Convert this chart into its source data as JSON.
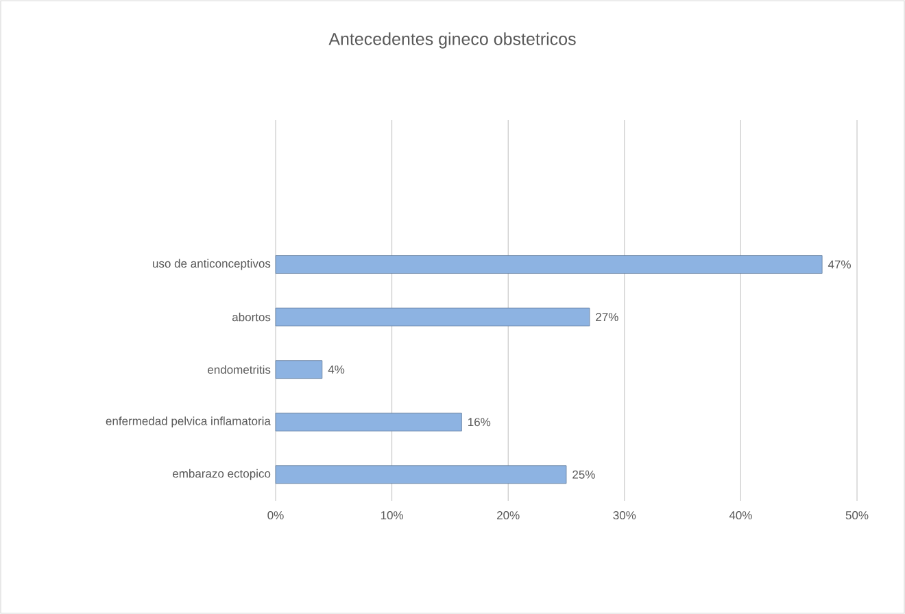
{
  "chart_data": {
    "type": "bar",
    "orientation": "horizontal",
    "title": "Antecedentes gineco obstetricos",
    "categories": [
      "uso de anticonceptivos",
      "abortos",
      "endometritis",
      "enfermedad pelvica inflamatoria",
      "embarazo ectopico"
    ],
    "values": [
      47,
      27,
      4,
      16,
      25
    ],
    "value_labels": [
      "47%",
      "27%",
      "4%",
      "16%",
      "25%"
    ],
    "color": "#8db3e2",
    "xlim": [
      0,
      50
    ],
    "xticks": [
      {
        "value": 0,
        "label": "0%"
      },
      {
        "value": 10,
        "label": "10%"
      },
      {
        "value": 20,
        "label": "20%"
      },
      {
        "value": 30,
        "label": "30%"
      },
      {
        "value": 40,
        "label": "40%"
      },
      {
        "value": 50,
        "label": "50%"
      }
    ],
    "grid": "x"
  }
}
